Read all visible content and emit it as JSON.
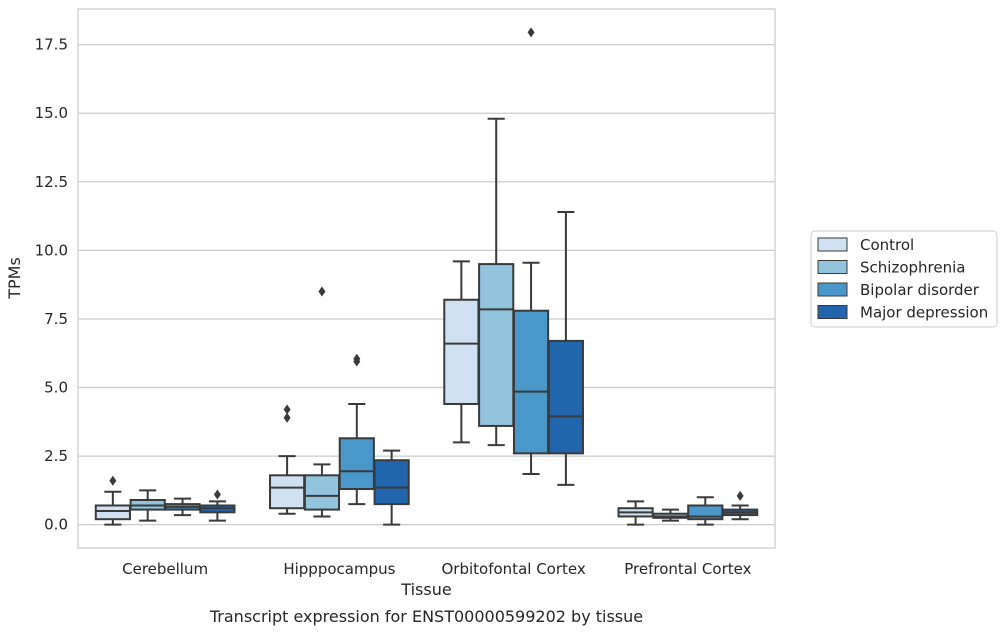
{
  "chart_data": {
    "type": "box",
    "xlabel": "Tissue",
    "ylabel": "TPMs",
    "caption": "Transcript expression for ENST00000599202 by tissue",
    "ylim": [
      -0.85,
      18.8
    ],
    "yticks": [
      0.0,
      2.5,
      5.0,
      7.5,
      10.0,
      12.5,
      15.0,
      17.5
    ],
    "ytick_labels": [
      "0.0",
      "2.5",
      "5.0",
      "7.5",
      "10.0",
      "12.5",
      "15.0",
      "17.5"
    ],
    "grid": "horizontal",
    "legend_position": "right",
    "categories": [
      "Cerebellum",
      "Hipppocampus",
      "Orbitofontal Cortex",
      "Prefrontal Cortex"
    ],
    "series": [
      {
        "name": "Control",
        "color": "#cfe1f2",
        "boxes": [
          {
            "whislo": 0.0,
            "q1": 0.2,
            "med": 0.5,
            "q3": 0.7,
            "whishi": 1.2,
            "fliers": [
              1.6
            ]
          },
          {
            "whislo": 0.4,
            "q1": 0.6,
            "med": 1.35,
            "q3": 1.8,
            "whishi": 2.5,
            "fliers": [
              3.9,
              4.2
            ]
          },
          {
            "whislo": 3.0,
            "q1": 4.4,
            "med": 6.6,
            "q3": 8.2,
            "whishi": 9.6,
            "fliers": []
          },
          {
            "whislo": 0.0,
            "q1": 0.3,
            "med": 0.45,
            "q3": 0.6,
            "whishi": 0.85,
            "fliers": []
          }
        ]
      },
      {
        "name": "Schizophrenia",
        "color": "#93c4de",
        "boxes": [
          {
            "whislo": 0.15,
            "q1": 0.55,
            "med": 0.7,
            "q3": 0.9,
            "whishi": 1.25,
            "fliers": []
          },
          {
            "whislo": 0.3,
            "q1": 0.55,
            "med": 1.05,
            "q3": 1.8,
            "whishi": 2.2,
            "fliers": [
              8.5
            ]
          },
          {
            "whislo": 2.9,
            "q1": 3.6,
            "med": 7.85,
            "q3": 9.5,
            "whishi": 14.8,
            "fliers": []
          },
          {
            "whislo": 0.15,
            "q1": 0.25,
            "med": 0.3,
            "q3": 0.4,
            "whishi": 0.55,
            "fliers": []
          }
        ]
      },
      {
        "name": "Bipolar disorder",
        "color": "#4a98c9",
        "boxes": [
          {
            "whislo": 0.35,
            "q1": 0.55,
            "med": 0.65,
            "q3": 0.75,
            "whishi": 0.95,
            "fliers": []
          },
          {
            "whislo": 0.75,
            "q1": 1.3,
            "med": 1.95,
            "q3": 3.15,
            "whishi": 4.4,
            "fliers": [
              5.95,
              6.05
            ]
          },
          {
            "whislo": 1.85,
            "q1": 2.6,
            "med": 4.85,
            "q3": 7.8,
            "whishi": 9.55,
            "fliers": [
              17.95
            ]
          },
          {
            "whislo": 0.0,
            "q1": 0.2,
            "med": 0.3,
            "q3": 0.7,
            "whishi": 1.0,
            "fliers": []
          }
        ]
      },
      {
        "name": "Major depression",
        "color": "#2166ac",
        "boxes": [
          {
            "whislo": 0.15,
            "q1": 0.45,
            "med": 0.6,
            "q3": 0.7,
            "whishi": 0.85,
            "fliers": [
              1.1
            ]
          },
          {
            "whislo": 0.0,
            "q1": 0.75,
            "med": 1.35,
            "q3": 2.35,
            "whishi": 2.7,
            "fliers": []
          },
          {
            "whislo": 1.45,
            "q1": 2.6,
            "med": 3.95,
            "q3": 6.7,
            "whishi": 11.4,
            "fliers": []
          },
          {
            "whislo": 0.2,
            "q1": 0.35,
            "med": 0.45,
            "q3": 0.55,
            "whishi": 0.7,
            "fliers": [
              1.05
            ]
          }
        ]
      }
    ]
  }
}
